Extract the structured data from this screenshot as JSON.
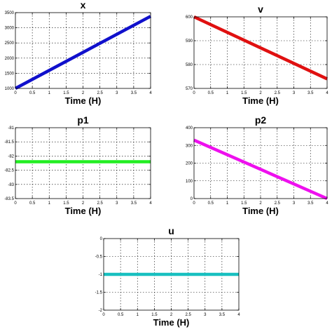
{
  "chart_data": [
    {
      "type": "line",
      "title": "x",
      "xlabel": "Time (H)",
      "xlim": [
        0,
        4
      ],
      "ylim": [
        1000,
        3500
      ],
      "xticks": [
        "0",
        "0.5",
        "1",
        "1.5",
        "2",
        "2.5",
        "3",
        "3.5",
        "4"
      ],
      "yticks": [
        "1000",
        "1500",
        "2000",
        "2500",
        "3000",
        "3500"
      ],
      "grid": true,
      "color": "#1010cc",
      "series": [
        {
          "x": [
            0,
            4
          ],
          "y": [
            1000,
            3380
          ]
        }
      ]
    },
    {
      "type": "line",
      "title": "v",
      "xlabel": "Time (H)",
      "xlim": [
        0,
        4
      ],
      "ylim": [
        570,
        600
      ],
      "xticks": [
        "0",
        "0.5",
        "1",
        "1.5",
        "2",
        "2.5",
        "3",
        "3.5",
        "4"
      ],
      "yticks": [
        "570",
        "580",
        "590",
        "600"
      ],
      "grid": true,
      "color": "#e01010",
      "series": [
        {
          "x": [
            0,
            4
          ],
          "y": [
            600,
            574
          ]
        }
      ]
    },
    {
      "type": "line",
      "title": "p1",
      "xlabel": "Time (H)",
      "xlim": [
        0,
        4
      ],
      "ylim": [
        -83.5,
        -81
      ],
      "xticks": [
        "0",
        "0.5",
        "1",
        "1.5",
        "2",
        "2.5",
        "3",
        "3.5",
        "4"
      ],
      "yticks": [
        "-81",
        "-81.5",
        "-82",
        "-82.5",
        "-83",
        "-83.5"
      ],
      "grid": true,
      "color": "#22ee22",
      "series": [
        {
          "x": [
            0,
            4
          ],
          "y": [
            -82.2,
            -82.2
          ]
        }
      ]
    },
    {
      "type": "line",
      "title": "p2",
      "xlabel": "Time (H)",
      "xlim": [
        0,
        4
      ],
      "ylim": [
        0,
        400
      ],
      "xticks": [
        "0",
        "0.5",
        "1",
        "1.5",
        "2",
        "2.5",
        "3",
        "3.5",
        "4"
      ],
      "yticks": [
        "0",
        "100",
        "200",
        "300",
        "400"
      ],
      "grid": true,
      "color": "#ee10ee",
      "series": [
        {
          "x": [
            0,
            4
          ],
          "y": [
            330,
            0
          ]
        }
      ]
    },
    {
      "type": "line",
      "title": "u",
      "xlabel": "Time (H)",
      "xlim": [
        0,
        4
      ],
      "ylim": [
        -2,
        0
      ],
      "xticks": [
        "0",
        "0.5",
        "1",
        "1.5",
        "2",
        "2.5",
        "3",
        "3.5",
        "4"
      ],
      "yticks": [
        "0",
        "-0.5",
        "-1",
        "-1.5",
        "-2"
      ],
      "grid": true,
      "color": "#18c0c0",
      "series": [
        {
          "x": [
            0,
            4
          ],
          "y": [
            -1,
            -1
          ]
        }
      ]
    }
  ]
}
